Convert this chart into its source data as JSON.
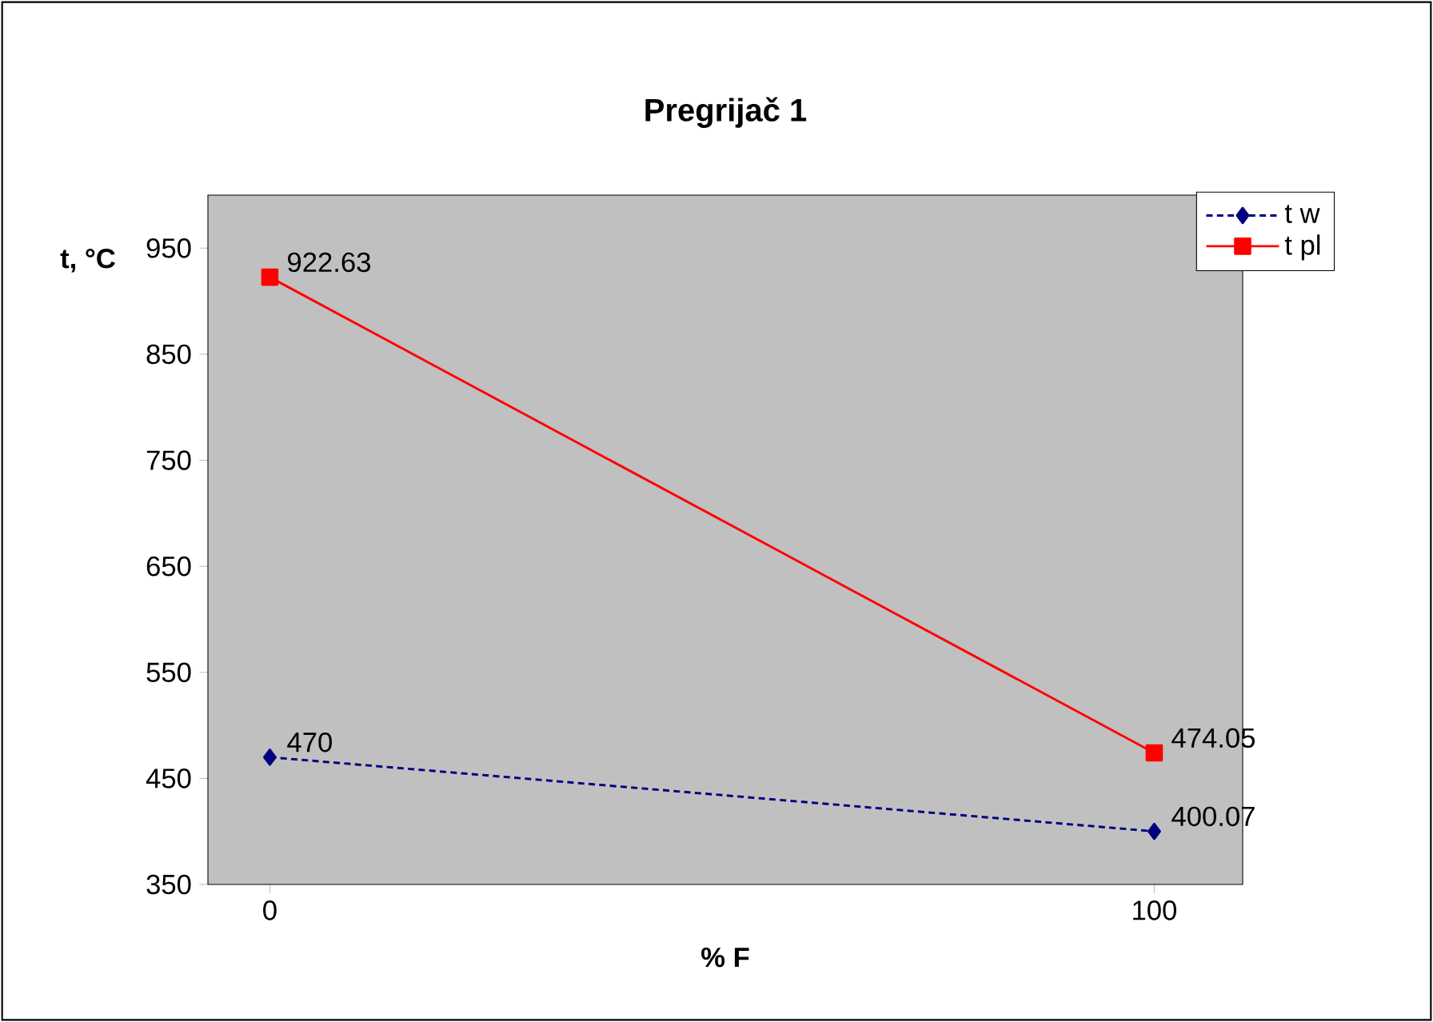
{
  "chart_data": {
    "type": "line",
    "title": "Pregrijač 1",
    "xlabel": "% F",
    "ylabel": "t, °C",
    "x": [
      0,
      100
    ],
    "series": [
      {
        "name": "t w",
        "color": "#000080",
        "values": [
          470,
          400.07
        ],
        "marker": "diamond",
        "line_style": "dotted"
      },
      {
        "name": "t pl",
        "color": "#ff0000",
        "values": [
          922.63,
          474.05
        ],
        "marker": "square",
        "line_style": "solid"
      }
    ],
    "xlim": [
      -7,
      110
    ],
    "xticks": [
      0,
      100
    ],
    "ylim": [
      350,
      1000
    ],
    "yticks": [
      350,
      450,
      550,
      650,
      750,
      850,
      950
    ],
    "data_labels": true,
    "grid": false,
    "legend": "top right"
  }
}
